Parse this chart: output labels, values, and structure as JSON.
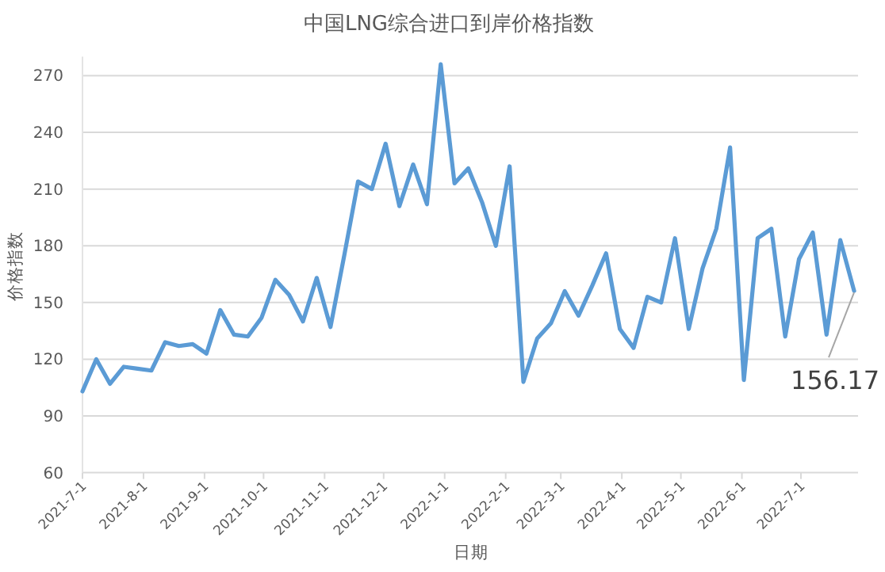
{
  "chart_data": {
    "type": "line",
    "title": "中国LNG综合进口到岸价格指数",
    "xlabel": "日期",
    "ylabel": "价格指数",
    "x": [
      "2021-07-01",
      "2021-07-08",
      "2021-07-15",
      "2021-07-22",
      "2021-07-29",
      "2021-08-05",
      "2021-08-12",
      "2021-08-19",
      "2021-08-26",
      "2021-09-02",
      "2021-09-09",
      "2021-09-16",
      "2021-09-23",
      "2021-09-30",
      "2021-10-07",
      "2021-10-14",
      "2021-10-21",
      "2021-10-28",
      "2021-11-04",
      "2021-11-11",
      "2021-11-18",
      "2021-11-25",
      "2021-12-02",
      "2021-12-09",
      "2021-12-16",
      "2021-12-23",
      "2021-12-30",
      "2022-01-06",
      "2022-01-13",
      "2022-01-20",
      "2022-01-27",
      "2022-02-03",
      "2022-02-10",
      "2022-02-17",
      "2022-02-24",
      "2022-03-03",
      "2022-03-10",
      "2022-03-17",
      "2022-03-24",
      "2022-03-31",
      "2022-04-07",
      "2022-04-14",
      "2022-04-21",
      "2022-04-28",
      "2022-05-05",
      "2022-05-12",
      "2022-05-19",
      "2022-05-26",
      "2022-06-02",
      "2022-06-09",
      "2022-06-16",
      "2022-06-23",
      "2022-06-30",
      "2022-07-07",
      "2022-07-14",
      "2022-07-21",
      "2022-07-28"
    ],
    "series": [
      {
        "color": "#5b9bd5",
        "values": [
          103,
          120,
          107,
          116,
          115,
          114,
          129,
          127,
          128,
          123,
          146,
          133,
          132,
          142,
          162,
          154,
          140,
          163,
          137,
          175,
          214,
          210,
          234,
          201,
          223,
          202,
          276,
          213,
          221,
          203,
          180,
          222,
          108,
          131,
          139,
          156,
          143,
          159,
          176,
          136,
          126,
          153,
          150,
          184,
          136,
          168,
          189,
          232,
          109,
          184,
          189,
          132,
          173,
          187,
          133,
          183,
          156.17
        ]
      }
    ],
    "xlim": [
      "2021-07-01",
      "2022-07-30"
    ],
    "xticks": [
      {
        "value": "2021-07-01",
        "label": "2021-7-1"
      },
      {
        "value": "2021-08-01",
        "label": "2021-8-1"
      },
      {
        "value": "2021-09-01",
        "label": "2021-9-1"
      },
      {
        "value": "2021-10-01",
        "label": "2021-10-1"
      },
      {
        "value": "2021-11-01",
        "label": "2021-11-1"
      },
      {
        "value": "2021-12-01",
        "label": "2021-12-1"
      },
      {
        "value": "2022-01-01",
        "label": "2022-1-1"
      },
      {
        "value": "2022-02-01",
        "label": "2022-2-1"
      },
      {
        "value": "2022-03-01",
        "label": "2022-3-1"
      },
      {
        "value": "2022-04-01",
        "label": "2022-4-1"
      },
      {
        "value": "2022-05-01",
        "label": "2022-5-1"
      },
      {
        "value": "2022-06-01",
        "label": "2022-6-1"
      },
      {
        "value": "2022-07-01",
        "label": "2022-7-1"
      }
    ],
    "ylim": [
      60,
      280
    ],
    "yticks": [
      60,
      90,
      120,
      150,
      180,
      210,
      240,
      270
    ],
    "grid": "y",
    "marker": "none",
    "line_style": "solid",
    "annotations": [
      {
        "text": "156.17",
        "x": "2022-07-28",
        "y": 156.17
      }
    ]
  }
}
